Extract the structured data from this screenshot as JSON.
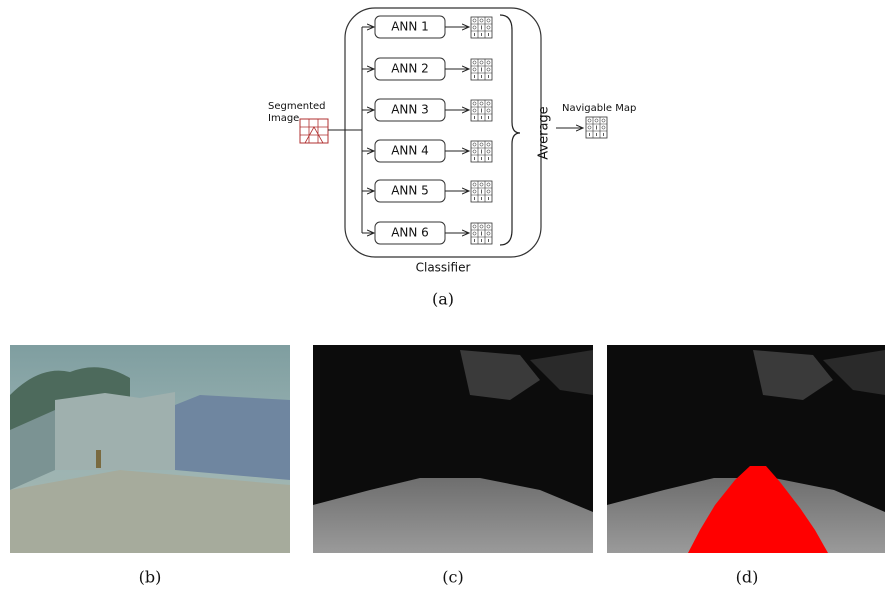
{
  "diagram": {
    "input_label": [
      "Segmented",
      "Image"
    ],
    "classifiers": [
      "ANN 1",
      "ANN 2",
      "ANN 3",
      "ANN 4",
      "ANN 5",
      "ANN 6"
    ],
    "combiner": "Average",
    "output_label": "Navigable Map",
    "container_label": "Classifier",
    "caption": "(a)"
  },
  "panels": [
    {
      "caption": "(b)"
    },
    {
      "caption": "(c)"
    },
    {
      "caption": "(d)"
    }
  ]
}
